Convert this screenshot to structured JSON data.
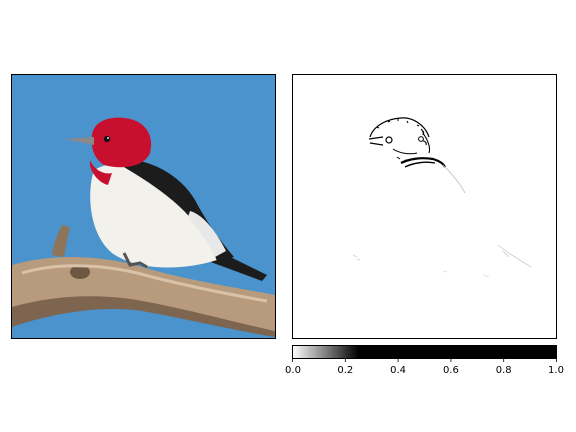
{
  "chart_data": [
    {
      "type": "image",
      "subject": "red-headed woodpecker perched on branch",
      "colors": {
        "sky": "#4a93cc",
        "head": "#c8102e",
        "body_white": "#f2f1ec",
        "wing_black": "#1c1c1c",
        "branch": "#b89a7c",
        "beak": "#8a8a8a"
      }
    },
    {
      "type": "heatmap",
      "colormap": "gray_r",
      "vmin": 0.0,
      "vmax": 1.0,
      "background": "#ffffff",
      "stroke": "#000000"
    },
    {
      "type": "colorbar",
      "orientation": "horizontal",
      "range": [
        0.0,
        1.0
      ],
      "ticks": [
        0.0,
        0.2,
        0.4,
        0.6,
        0.8,
        1.0
      ],
      "tick_labels": [
        "0.0",
        "0.2",
        "0.4",
        "0.6",
        "0.8",
        "1.0"
      ],
      "saturation_point": 0.25
    }
  ]
}
